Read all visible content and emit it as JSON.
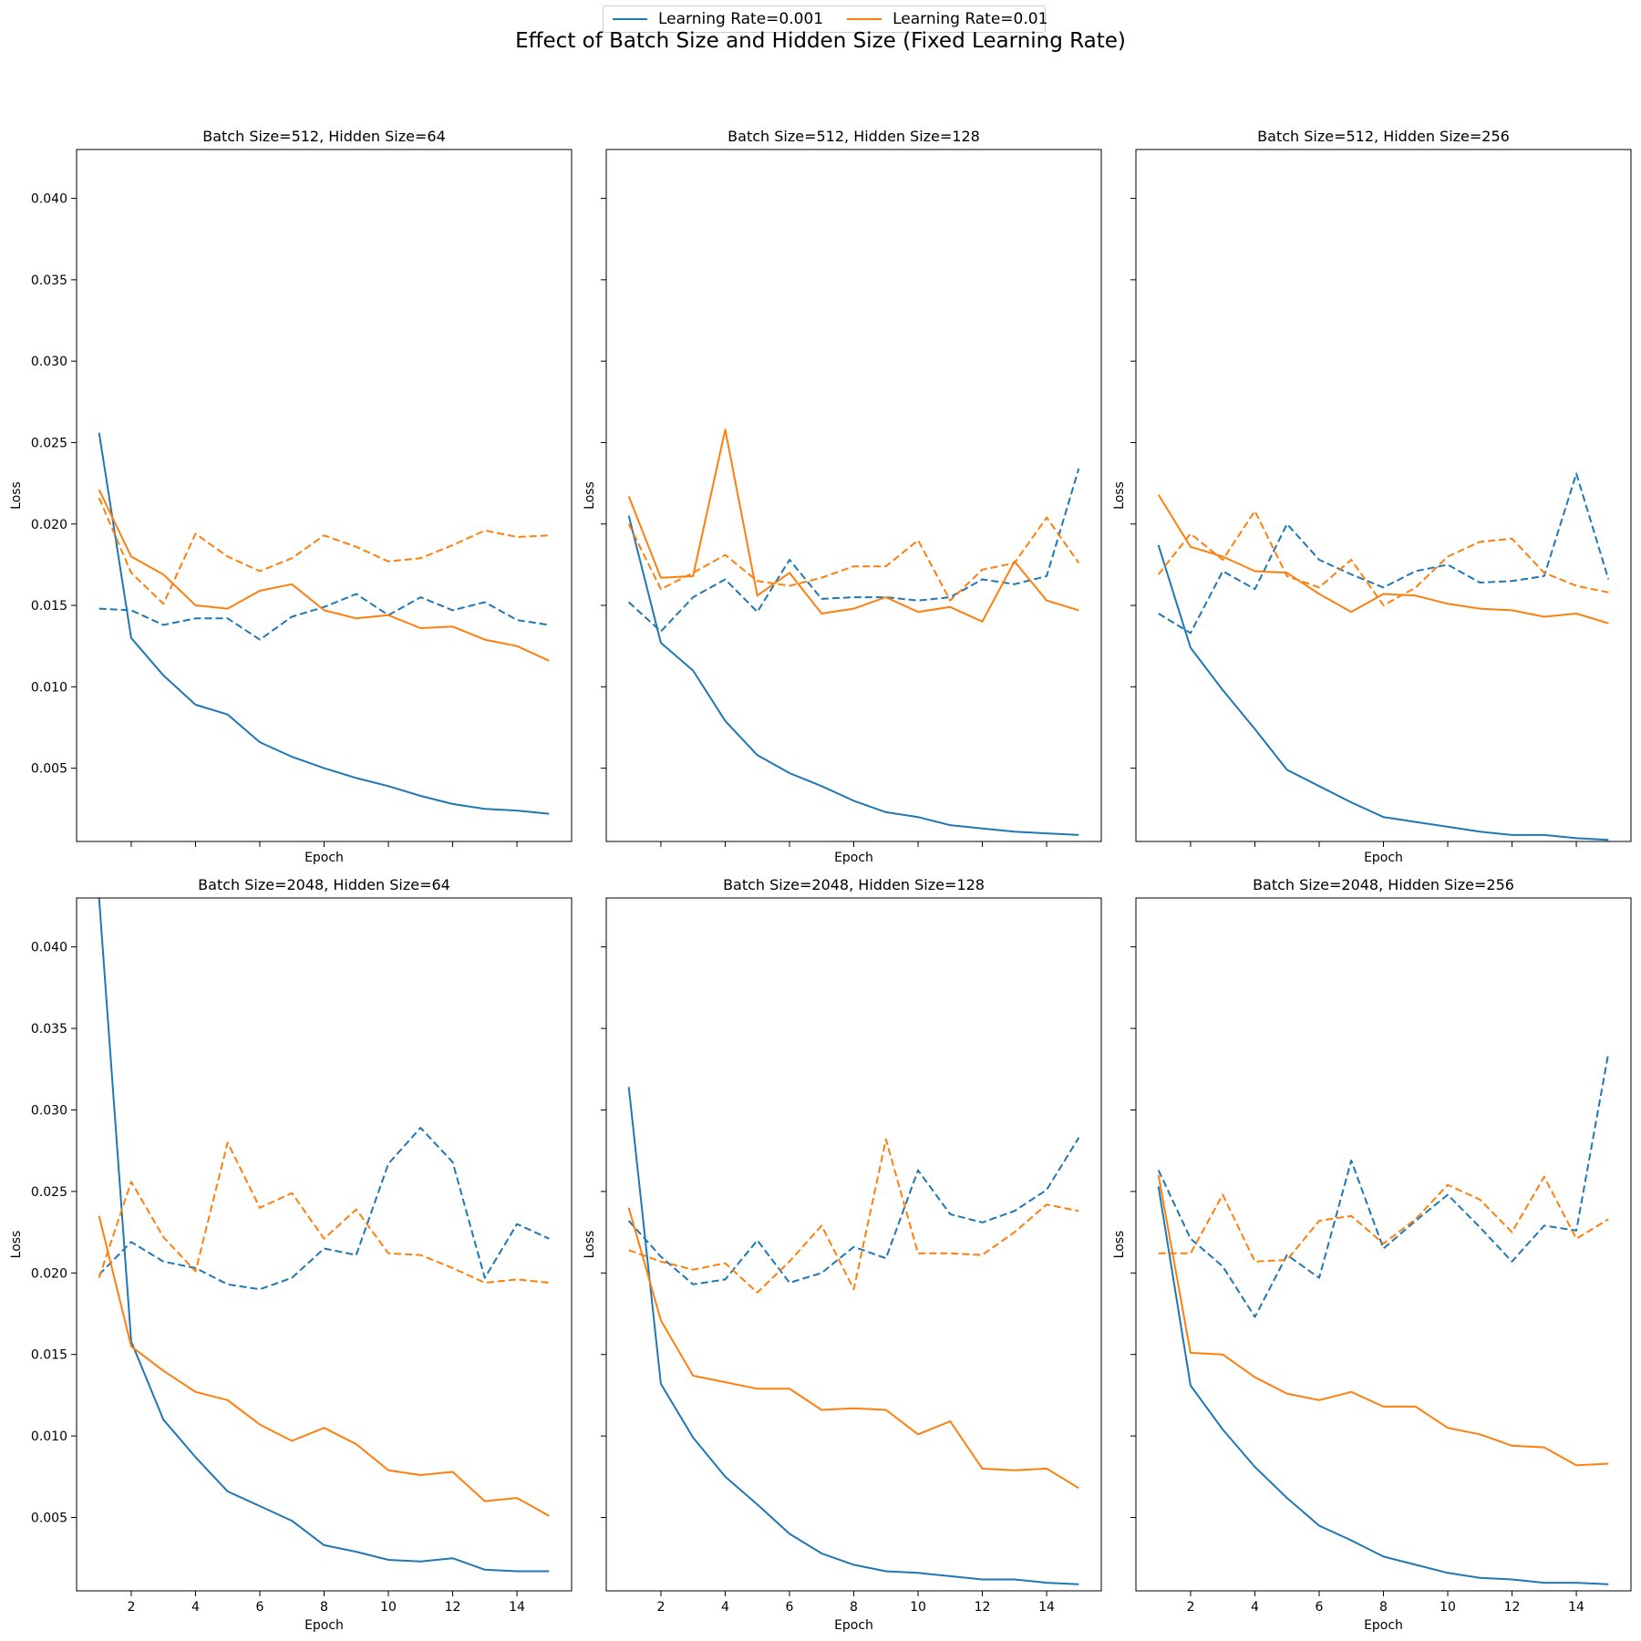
{
  "suptitle": "Effect of Batch Size and Hidden Size (Fixed Learning Rate)",
  "legend": [
    {
      "label": "Learning Rate=0.001",
      "color": "#1f77b4"
    },
    {
      "label": "Learning Rate=0.01",
      "color": "#ff7f0e"
    }
  ],
  "chart_data": {
    "type": "line",
    "xlim": [
      0.3,
      15.7
    ],
    "ylim": [
      0.0005,
      0.043
    ],
    "xticks": [
      2,
      4,
      6,
      8,
      10,
      12,
      14
    ],
    "yticks": [
      0.005,
      0.01,
      0.015,
      0.02,
      0.025,
      0.03,
      0.035,
      0.04
    ],
    "x": [
      1,
      2,
      3,
      4,
      5,
      6,
      7,
      8,
      9,
      10,
      11,
      12,
      13,
      14,
      15
    ],
    "panels": [
      {
        "title": "Batch Size=512, Hidden Size=64",
        "xlabel": "Epoch",
        "ylabel": "Loss",
        "series": [
          {
            "lr": "0.001",
            "style": "solid",
            "values": [
              0.0256,
              0.013,
              0.0107,
              0.0089,
              0.0083,
              0.0066,
              0.0057,
              0.005,
              0.0044,
              0.0039,
              0.0033,
              0.0028,
              0.0025,
              0.0024,
              0.0022
            ]
          },
          {
            "lr": "0.001",
            "style": "dashed",
            "values": [
              0.0148,
              0.0147,
              0.0138,
              0.0142,
              0.0142,
              0.0129,
              0.0143,
              0.0149,
              0.0157,
              0.0144,
              0.0155,
              0.0147,
              0.0152,
              0.0141,
              0.0138
            ]
          },
          {
            "lr": "0.01",
            "style": "solid",
            "values": [
              0.0221,
              0.018,
              0.0169,
              0.015,
              0.0148,
              0.0159,
              0.0163,
              0.0147,
              0.0142,
              0.0144,
              0.0136,
              0.0137,
              0.0129,
              0.0125,
              0.0116
            ]
          },
          {
            "lr": "0.01",
            "style": "dashed",
            "values": [
              0.0216,
              0.017,
              0.0151,
              0.0194,
              0.018,
              0.0171,
              0.0179,
              0.0193,
              0.0186,
              0.0177,
              0.0179,
              0.0187,
              0.0196,
              0.0192,
              0.0193
            ]
          }
        ]
      },
      {
        "title": "Batch Size=512, Hidden Size=128",
        "xlabel": "Epoch",
        "ylabel": "Loss",
        "series": [
          {
            "lr": "0.001",
            "style": "solid",
            "values": [
              0.0205,
              0.0127,
              0.011,
              0.0079,
              0.0058,
              0.0047,
              0.0039,
              0.003,
              0.0023,
              0.002,
              0.0015,
              0.0013,
              0.0011,
              0.001,
              0.0009
            ]
          },
          {
            "lr": "0.001",
            "style": "dashed",
            "values": [
              0.0152,
              0.0134,
              0.0155,
              0.0166,
              0.0146,
              0.0178,
              0.0154,
              0.0155,
              0.0155,
              0.0153,
              0.0155,
              0.0166,
              0.0163,
              0.0168,
              0.0234
            ]
          },
          {
            "lr": "0.01",
            "style": "solid",
            "values": [
              0.0217,
              0.0167,
              0.0168,
              0.0258,
              0.0156,
              0.017,
              0.0145,
              0.0148,
              0.0155,
              0.0146,
              0.0149,
              0.014,
              0.0177,
              0.0153,
              0.0147
            ]
          },
          {
            "lr": "0.01",
            "style": "dashed",
            "values": [
              0.02,
              0.016,
              0.017,
              0.0181,
              0.0165,
              0.0162,
              0.0167,
              0.0174,
              0.0174,
              0.019,
              0.0153,
              0.0172,
              0.0176,
              0.0204,
              0.0176
            ]
          }
        ]
      },
      {
        "title": "Batch Size=512, Hidden Size=256",
        "xlabel": "Epoch",
        "ylabel": "Loss",
        "series": [
          {
            "lr": "0.001",
            "style": "solid",
            "values": [
              0.0187,
              0.0124,
              0.0098,
              0.0074,
              0.0049,
              0.0039,
              0.0029,
              0.002,
              0.0017,
              0.0014,
              0.0011,
              0.0009,
              0.0009,
              0.0007,
              0.0006
            ]
          },
          {
            "lr": "0.001",
            "style": "dashed",
            "values": [
              0.0145,
              0.0133,
              0.0171,
              0.016,
              0.02,
              0.0178,
              0.0169,
              0.0161,
              0.0171,
              0.0175,
              0.0164,
              0.0165,
              0.0168,
              0.0231,
              0.0166
            ]
          },
          {
            "lr": "0.01",
            "style": "solid",
            "values": [
              0.0218,
              0.0186,
              0.018,
              0.0171,
              0.017,
              0.0157,
              0.0146,
              0.0157,
              0.0156,
              0.0151,
              0.0148,
              0.0147,
              0.0143,
              0.0145,
              0.0139
            ]
          },
          {
            "lr": "0.01",
            "style": "dashed",
            "values": [
              0.0169,
              0.0194,
              0.0178,
              0.0208,
              0.0168,
              0.0161,
              0.0178,
              0.015,
              0.0161,
              0.018,
              0.0189,
              0.0191,
              0.017,
              0.0162,
              0.0158
            ]
          }
        ]
      },
      {
        "title": "Batch Size=2048, Hidden Size=64",
        "xlabel": "Epoch",
        "ylabel": "Loss",
        "series": [
          {
            "lr": "0.001",
            "style": "solid",
            "values": [
              0.043,
              0.0158,
              0.011,
              0.0087,
              0.0066,
              0.0057,
              0.0048,
              0.0033,
              0.0029,
              0.0024,
              0.0023,
              0.0025,
              0.0018,
              0.0017,
              0.0017
            ]
          },
          {
            "lr": "0.001",
            "style": "dashed",
            "values": [
              0.0199,
              0.0219,
              0.0207,
              0.0203,
              0.0193,
              0.019,
              0.0197,
              0.0215,
              0.0211,
              0.0267,
              0.0289,
              0.0268,
              0.0197,
              0.023,
              0.0221
            ]
          },
          {
            "lr": "0.01",
            "style": "solid",
            "values": [
              0.0235,
              0.0155,
              0.014,
              0.0127,
              0.0122,
              0.0107,
              0.0097,
              0.0105,
              0.0095,
              0.0079,
              0.0076,
              0.0078,
              0.006,
              0.0062,
              0.0051
            ]
          },
          {
            "lr": "0.01",
            "style": "dashed",
            "values": [
              0.0197,
              0.0256,
              0.0222,
              0.0201,
              0.028,
              0.024,
              0.0249,
              0.0221,
              0.0239,
              0.0212,
              0.0211,
              0.0203,
              0.0194,
              0.0196,
              0.0194
            ]
          }
        ]
      },
      {
        "title": "Batch Size=2048, Hidden Size=128",
        "xlabel": "Epoch",
        "ylabel": "Loss",
        "series": [
          {
            "lr": "0.001",
            "style": "solid",
            "values": [
              0.0314,
              0.0132,
              0.0099,
              0.0075,
              0.0058,
              0.004,
              0.0028,
              0.0021,
              0.0017,
              0.0016,
              0.0014,
              0.0012,
              0.0012,
              0.001,
              0.0009
            ]
          },
          {
            "lr": "0.001",
            "style": "dashed",
            "values": [
              0.0232,
              0.021,
              0.0193,
              0.0196,
              0.022,
              0.0194,
              0.02,
              0.0216,
              0.0209,
              0.0263,
              0.0236,
              0.0231,
              0.0238,
              0.0251,
              0.0283
            ]
          },
          {
            "lr": "0.01",
            "style": "solid",
            "values": [
              0.024,
              0.0171,
              0.0137,
              0.0133,
              0.0129,
              0.0129,
              0.0116,
              0.0117,
              0.0116,
              0.0101,
              0.0109,
              0.008,
              0.0079,
              0.008,
              0.0068
            ]
          },
          {
            "lr": "0.01",
            "style": "dashed",
            "values": [
              0.0214,
              0.0207,
              0.0202,
              0.0206,
              0.0188,
              0.0207,
              0.0229,
              0.019,
              0.0282,
              0.0212,
              0.0212,
              0.0211,
              0.0225,
              0.0242,
              0.0238
            ]
          }
        ]
      },
      {
        "title": "Batch Size=2048, Hidden Size=256",
        "xlabel": "Epoch",
        "ylabel": "Loss",
        "series": [
          {
            "lr": "0.001",
            "style": "solid",
            "values": [
              0.0253,
              0.0131,
              0.0104,
              0.0081,
              0.0062,
              0.0045,
              0.0036,
              0.0026,
              0.0021,
              0.0016,
              0.0013,
              0.0012,
              0.001,
              0.001,
              0.0009
            ]
          },
          {
            "lr": "0.001",
            "style": "dashed",
            "values": [
              0.0263,
              0.0221,
              0.0204,
              0.0173,
              0.0211,
              0.0197,
              0.0269,
              0.0215,
              0.0232,
              0.0248,
              0.0228,
              0.0207,
              0.0229,
              0.0226,
              0.0335
            ]
          },
          {
            "lr": "0.01",
            "style": "solid",
            "values": [
              0.026,
              0.0151,
              0.015,
              0.0136,
              0.0126,
              0.0122,
              0.0127,
              0.0118,
              0.0118,
              0.0105,
              0.0101,
              0.0094,
              0.0093,
              0.0082,
              0.0083
            ]
          },
          {
            "lr": "0.01",
            "style": "dashed",
            "values": [
              0.0212,
              0.0212,
              0.0248,
              0.0207,
              0.0208,
              0.0232,
              0.0235,
              0.0218,
              0.0233,
              0.0254,
              0.0245,
              0.0225,
              0.0259,
              0.0221,
              0.0233
            ]
          }
        ]
      }
    ]
  }
}
